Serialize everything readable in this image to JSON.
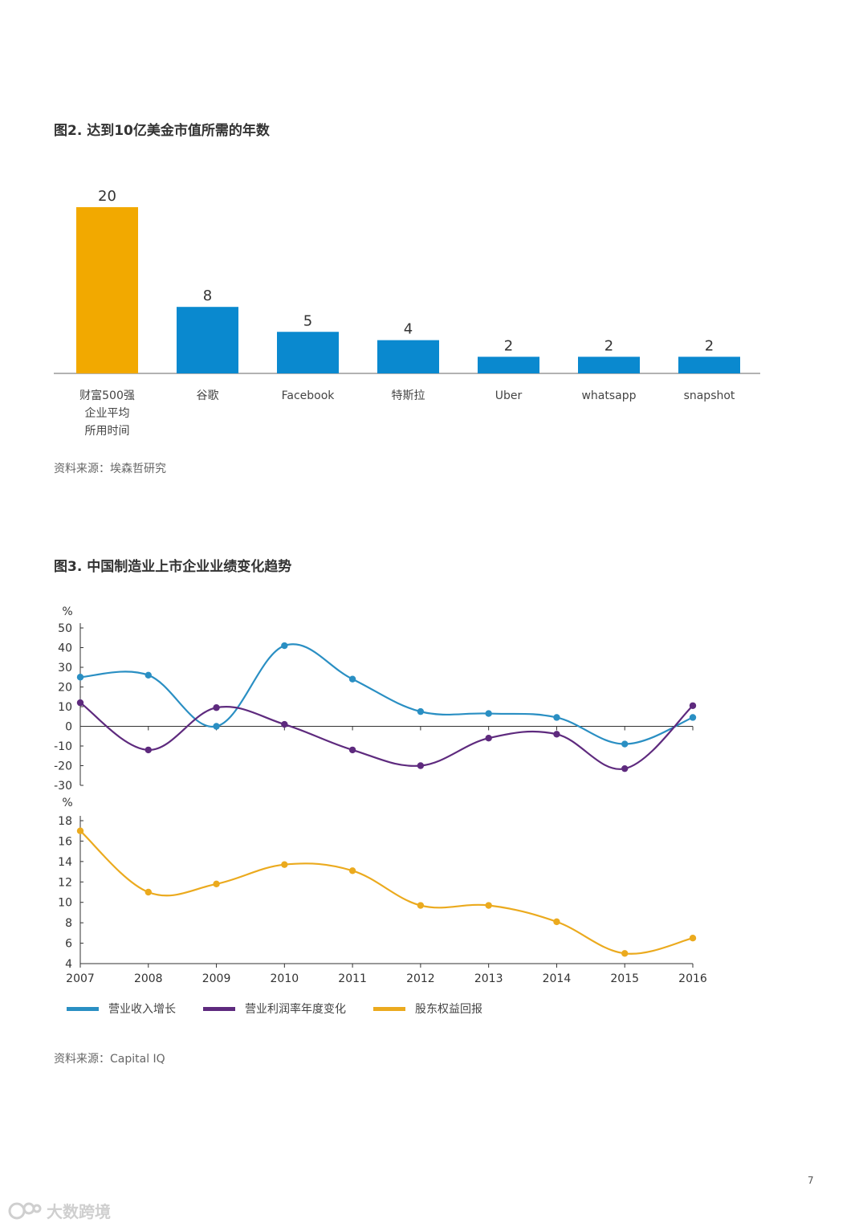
{
  "page": {
    "fig2_title": "图2. 达到10亿美金市值所需的年数",
    "fig2_source": "资料来源：埃森哲研究",
    "fig3_title": "图3. 中国制造业上市企业业绩变化趋势",
    "fig3_source": "资料来源：Capital IQ",
    "page_number": "7",
    "watermark": "大数跨境"
  },
  "chart_data": [
    {
      "type": "bar",
      "title": "图2. 达到10亿美金市值所需的年数",
      "categories": [
        [
          "财富500强",
          "企业平均",
          "所用时间"
        ],
        [
          "谷歌"
        ],
        [
          "Facebook"
        ],
        [
          "特斯拉"
        ],
        [
          "Uber"
        ],
        [
          "whatsapp"
        ],
        [
          "snapshot"
        ]
      ],
      "values": [
        20,
        8,
        5,
        4,
        2,
        2,
        2
      ],
      "value_labels": [
        "20",
        "8",
        "5",
        "4",
        "2",
        "2",
        "2"
      ],
      "colors": [
        "#F2A900",
        "#0A89CF",
        "#0A89CF",
        "#0A89CF",
        "#0A89CF",
        "#0A89CF",
        "#0A89CF"
      ],
      "ylim": [
        0,
        20
      ]
    },
    {
      "type": "line",
      "title": "图3. 中国制造业上市企业业绩变化趋势",
      "x": [
        "2007",
        "2008",
        "2009",
        "2010",
        "2011",
        "2012",
        "2013",
        "2014",
        "2015",
        "2016"
      ],
      "panels": [
        {
          "ylabel": "%",
          "ylim": [
            -30,
            50
          ],
          "yticks": [
            50,
            40,
            30,
            20,
            10,
            0,
            -10,
            -20,
            -30
          ],
          "series": [
            {
              "name": "营业收入增长",
              "color": "#2A8FC3",
              "values": [
                25,
                26,
                0,
                41,
                24,
                7.5,
                6.5,
                4.5,
                -9,
                4.5
              ]
            },
            {
              "name": "营业利润率年度变化",
              "color": "#5E2A7E",
              "values": [
                12,
                -12,
                9.5,
                1,
                -12,
                -20,
                -6,
                -4,
                -21.5,
                10.5
              ]
            }
          ]
        },
        {
          "ylabel": "%",
          "ylim": [
            4,
            18
          ],
          "yticks": [
            18,
            16,
            14,
            12,
            10,
            8,
            6,
            4
          ],
          "series": [
            {
              "name": "股东权益回报",
              "color": "#EBAA1E",
              "values": [
                17,
                11,
                11.8,
                13.7,
                13.1,
                9.7,
                9.7,
                8.1,
                5,
                6.5
              ]
            }
          ]
        }
      ],
      "legend_position": "bottom-left"
    }
  ]
}
